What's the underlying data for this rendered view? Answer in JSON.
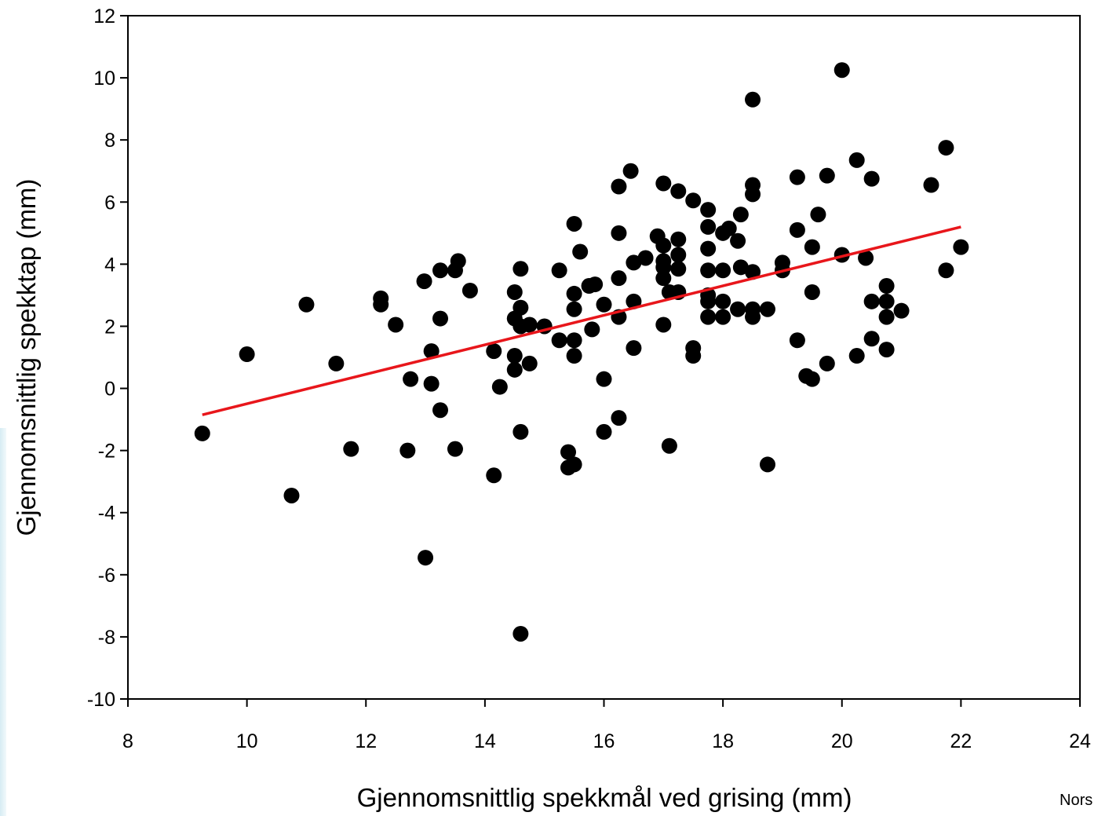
{
  "footer_note": "Nors",
  "chart_data": {
    "type": "scatter",
    "title": "",
    "xlabel": "Gjennomsnittlig spekkmål ved grising (mm)",
    "ylabel": "Gjennomsnittlig spekktap (mm)",
    "xlim": [
      8,
      24
    ],
    "ylim": [
      -10,
      12
    ],
    "xticks": [
      "8",
      "10",
      "12",
      "14",
      "16",
      "18",
      "20",
      "22",
      "24"
    ],
    "yticks": [
      "-10",
      "-8",
      "-6",
      "-4",
      "-2",
      "0",
      "2",
      "4",
      "6",
      "8",
      "10",
      "12"
    ],
    "grid": false,
    "colors": {
      "points": "#000000",
      "trendline": "#e8161b"
    },
    "trendline": {
      "x": [
        9.25,
        22.0
      ],
      "y": [
        -0.85,
        5.2
      ]
    },
    "points": [
      [
        9.25,
        -1.45
      ],
      [
        10.0,
        1.1
      ],
      [
        10.75,
        -3.45
      ],
      [
        11.0,
        2.7
      ],
      [
        11.5,
        0.8
      ],
      [
        11.75,
        -1.95
      ],
      [
        12.25,
        2.9
      ],
      [
        12.25,
        2.7
      ],
      [
        12.5,
        2.05
      ],
      [
        12.7,
        -2.0
      ],
      [
        12.75,
        0.3
      ],
      [
        12.98,
        3.45
      ],
      [
        13.0,
        -5.45
      ],
      [
        13.1,
        1.2
      ],
      [
        13.1,
        0.15
      ],
      [
        13.25,
        3.8
      ],
      [
        13.25,
        2.25
      ],
      [
        13.25,
        -0.7
      ],
      [
        13.5,
        3.8
      ],
      [
        13.55,
        4.1
      ],
      [
        13.5,
        -1.95
      ],
      [
        13.75,
        3.15
      ],
      [
        14.15,
        1.2
      ],
      [
        14.15,
        -2.8
      ],
      [
        14.25,
        0.05
      ],
      [
        14.5,
        3.1
      ],
      [
        14.5,
        2.25
      ],
      [
        14.5,
        1.05
      ],
      [
        14.5,
        0.6
      ],
      [
        14.6,
        3.85
      ],
      [
        14.6,
        2.6
      ],
      [
        14.6,
        2.0
      ],
      [
        14.6,
        -1.4
      ],
      [
        14.6,
        -7.9
      ],
      [
        14.75,
        2.05
      ],
      [
        14.75,
        0.8
      ],
      [
        15.0,
        2.0
      ],
      [
        15.25,
        3.8
      ],
      [
        15.25,
        1.55
      ],
      [
        15.4,
        -2.05
      ],
      [
        15.4,
        -2.55
      ],
      [
        15.5,
        5.3
      ],
      [
        15.5,
        3.05
      ],
      [
        15.5,
        2.55
      ],
      [
        15.5,
        1.55
      ],
      [
        15.5,
        1.05
      ],
      [
        15.5,
        -2.45
      ],
      [
        15.6,
        4.4
      ],
      [
        15.75,
        3.3
      ],
      [
        15.8,
        1.9
      ],
      [
        15.85,
        3.35
      ],
      [
        16.0,
        2.7
      ],
      [
        16.0,
        0.3
      ],
      [
        16.0,
        -1.4
      ],
      [
        16.25,
        6.5
      ],
      [
        16.25,
        5.0
      ],
      [
        16.25,
        3.55
      ],
      [
        16.25,
        2.3
      ],
      [
        16.25,
        -0.95
      ],
      [
        16.45,
        7.0
      ],
      [
        16.5,
        4.05
      ],
      [
        16.5,
        2.8
      ],
      [
        16.5,
        1.3
      ],
      [
        16.7,
        4.2
      ],
      [
        16.9,
        4.9
      ],
      [
        17.0,
        6.6
      ],
      [
        17.0,
        4.6
      ],
      [
        17.0,
        4.1
      ],
      [
        17.0,
        3.9
      ],
      [
        17.0,
        3.55
      ],
      [
        17.0,
        2.05
      ],
      [
        17.1,
        -1.85
      ],
      [
        17.1,
        3.1
      ],
      [
        17.25,
        6.35
      ],
      [
        17.25,
        4.8
      ],
      [
        17.25,
        4.3
      ],
      [
        17.25,
        3.85
      ],
      [
        17.25,
        3.1
      ],
      [
        17.5,
        6.05
      ],
      [
        17.5,
        1.3
      ],
      [
        17.5,
        1.05
      ],
      [
        17.75,
        5.75
      ],
      [
        17.75,
        5.2
      ],
      [
        17.75,
        4.5
      ],
      [
        17.75,
        3.8
      ],
      [
        17.75,
        3.0
      ],
      [
        17.75,
        2.8
      ],
      [
        17.75,
        2.3
      ],
      [
        18.0,
        5.0
      ],
      [
        18.0,
        3.8
      ],
      [
        18.0,
        2.8
      ],
      [
        18.0,
        2.3
      ],
      [
        18.1,
        5.15
      ],
      [
        18.25,
        4.75
      ],
      [
        18.25,
        2.55
      ],
      [
        18.3,
        5.6
      ],
      [
        18.3,
        3.9
      ],
      [
        18.5,
        9.3
      ],
      [
        18.5,
        6.55
      ],
      [
        18.5,
        6.25
      ],
      [
        18.5,
        3.75
      ],
      [
        18.5,
        2.55
      ],
      [
        18.5,
        2.3
      ],
      [
        18.75,
        2.55
      ],
      [
        18.75,
        -2.45
      ],
      [
        19.0,
        4.05
      ],
      [
        19.0,
        3.8
      ],
      [
        19.25,
        6.8
      ],
      [
        19.25,
        5.1
      ],
      [
        19.25,
        1.55
      ],
      [
        19.4,
        0.4
      ],
      [
        19.5,
        4.55
      ],
      [
        19.5,
        3.1
      ],
      [
        19.5,
        0.3
      ],
      [
        19.6,
        5.6
      ],
      [
        19.75,
        6.85
      ],
      [
        19.75,
        0.8
      ],
      [
        20.0,
        10.25
      ],
      [
        20.0,
        4.3
      ],
      [
        20.25,
        7.35
      ],
      [
        20.25,
        1.05
      ],
      [
        20.4,
        4.2
      ],
      [
        20.5,
        6.75
      ],
      [
        20.5,
        2.8
      ],
      [
        20.5,
        1.6
      ],
      [
        20.75,
        3.3
      ],
      [
        20.75,
        2.8
      ],
      [
        20.75,
        2.3
      ],
      [
        20.75,
        1.25
      ],
      [
        21.0,
        2.5
      ],
      [
        21.5,
        6.55
      ],
      [
        21.75,
        7.75
      ],
      [
        21.75,
        3.8
      ],
      [
        22.0,
        4.55
      ]
    ]
  }
}
